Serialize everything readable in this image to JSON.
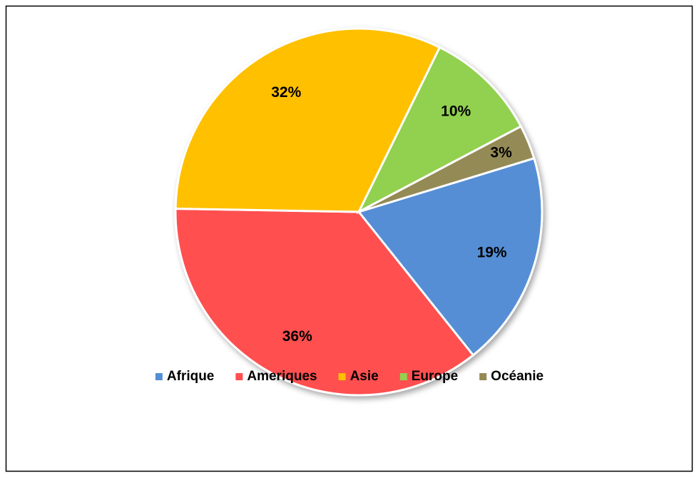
{
  "chart_data": {
    "type": "pie",
    "categories": [
      "Afrique",
      "Ameriques",
      "Asie",
      "Europe",
      "Océanie"
    ],
    "values": [
      19,
      36,
      32,
      10,
      3
    ],
    "value_labels": [
      "19%",
      "36%",
      "32%",
      "10%",
      "3%"
    ],
    "colors": [
      "#558ed5",
      "#ff4f4f",
      "#ffc000",
      "#92d050",
      "#948a54"
    ],
    "legend": "bottom"
  }
}
